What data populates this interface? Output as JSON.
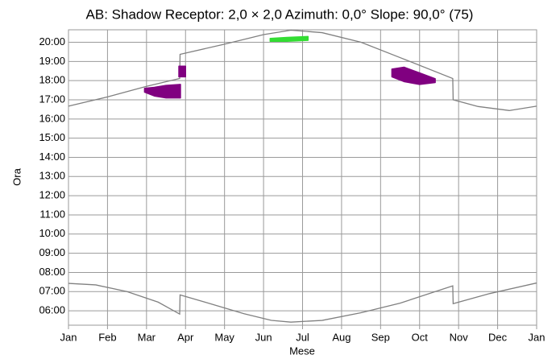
{
  "chart_data": {
    "type": "line",
    "title": "AB: Shadow Receptor: 2,0 × 2,0  Azimuth: 0,0°  Slope: 90,0° (75)",
    "xlabel": "Mese",
    "ylabel": "Ora",
    "xlim": [
      0,
      12
    ],
    "xticks": [
      {
        "value": 0,
        "label": "Jan"
      },
      {
        "value": 1,
        "label": "Feb"
      },
      {
        "value": 2,
        "label": "Mar"
      },
      {
        "value": 3,
        "label": "Apr"
      },
      {
        "value": 4,
        "label": "May"
      },
      {
        "value": 5,
        "label": "Jun"
      },
      {
        "value": 6,
        "label": "Jul"
      },
      {
        "value": 7,
        "label": "Aug"
      },
      {
        "value": 8,
        "label": "Sep"
      },
      {
        "value": 9,
        "label": "Oct"
      },
      {
        "value": 10,
        "label": "Nov"
      },
      {
        "value": 11,
        "label": "Dec"
      },
      {
        "value": 12,
        "label": "Jan"
      }
    ],
    "ylim": [
      5.25,
      20.65
    ],
    "yticks": [
      {
        "value": 6,
        "label": "06:00"
      },
      {
        "value": 7,
        "label": "07:00"
      },
      {
        "value": 8,
        "label": "08:00"
      },
      {
        "value": 9,
        "label": "09:00"
      },
      {
        "value": 10,
        "label": "10:00"
      },
      {
        "value": 11,
        "label": "11:00"
      },
      {
        "value": 12,
        "label": "12:00"
      },
      {
        "value": 13,
        "label": "13:00"
      },
      {
        "value": 14,
        "label": "14:00"
      },
      {
        "value": 15,
        "label": "15:00"
      },
      {
        "value": 16,
        "label": "16:00"
      },
      {
        "value": 17,
        "label": "17:00"
      },
      {
        "value": 18,
        "label": "18:00"
      },
      {
        "value": 19,
        "label": "19:00"
      },
      {
        "value": 20,
        "label": "20:00"
      }
    ],
    "grid": true,
    "series": [
      {
        "type": "line",
        "color": "#808080",
        "x": [
          0,
          1,
          2,
          2.85,
          2.86,
          4,
          5,
          5.7,
          6.5,
          7.5,
          8.5,
          9.85,
          9.86,
          10.5,
          11.3,
          12
        ],
        "values": [
          16.67,
          17.15,
          17.7,
          18.11,
          19.37,
          19.9,
          20.4,
          20.63,
          20.5,
          20.0,
          19.2,
          18.11,
          17.0,
          16.65,
          16.44,
          16.67
        ]
      },
      {
        "type": "line",
        "color": "#808080",
        "x": [
          0,
          0.7,
          1.5,
          2.3,
          2.85,
          2.86,
          3.5,
          4.5,
          5.2,
          5.7,
          6.5,
          7.5,
          8.5,
          9.85,
          9.86,
          10.8,
          12
        ],
        "values": [
          7.43,
          7.35,
          7.0,
          6.45,
          5.83,
          6.83,
          6.45,
          5.85,
          5.5,
          5.41,
          5.5,
          5.9,
          6.4,
          7.3,
          6.37,
          6.9,
          7.45
        ]
      },
      {
        "type": "range",
        "color": "#800080",
        "x": [
          1.95,
          2.2,
          2.5,
          2.87
        ],
        "values": [
          17.6,
          17.65,
          17.75,
          17.8
        ],
        "lower": [
          17.4,
          17.2,
          17.1,
          17.1
        ]
      },
      {
        "type": "range",
        "color": "#800080",
        "x": [
          2.83,
          3.0
        ],
        "values": [
          18.75,
          18.75
        ],
        "lower": [
          18.2,
          18.2
        ]
      },
      {
        "type": "range",
        "color": "#33dd33",
        "x": [
          5.17,
          5.6,
          6.14
        ],
        "values": [
          20.2,
          20.25,
          20.3
        ],
        "lower": [
          20.05,
          20.05,
          20.1
        ]
      },
      {
        "type": "range",
        "color": "#800080",
        "x": [
          8.29,
          8.6,
          9.0,
          9.4
        ],
        "values": [
          18.6,
          18.7,
          18.4,
          18.1
        ],
        "lower": [
          18.2,
          17.95,
          17.8,
          17.9
        ]
      }
    ]
  }
}
